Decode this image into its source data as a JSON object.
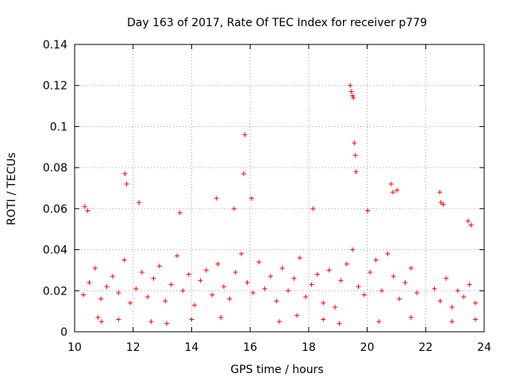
{
  "chart_data": {
    "type": "scatter",
    "title": "Day 163 of 2017, Rate Of TEC Index for receiver p779",
    "xlabel": "GPS time / hours",
    "ylabel": "ROTI / TECUs",
    "xlim": [
      10,
      24
    ],
    "ylim": [
      0,
      0.14
    ],
    "grid": true,
    "x_ticks": [
      10,
      12,
      14,
      16,
      18,
      20,
      22,
      24
    ],
    "x_tick_labels": [
      "10",
      "12",
      "14",
      "16",
      "18",
      "20",
      "22",
      "24"
    ],
    "y_ticks": [
      0,
      0.02,
      0.04,
      0.06,
      0.08,
      0.1,
      0.12,
      0.14
    ],
    "y_tick_labels": [
      "0",
      "0.02",
      "0.04",
      "0.06",
      "0.08",
      "0.1",
      "0.12",
      "0.14"
    ],
    "marker": "+",
    "series": [
      {
        "name": "ROTI",
        "color": "#ff0000",
        "x": [
          10.3,
          10.5,
          10.7,
          10.9,
          11.1,
          11.3,
          11.5,
          11.7,
          11.9,
          12.1,
          12.3,
          12.5,
          12.7,
          12.9,
          13.1,
          13.3,
          13.5,
          13.7,
          13.9,
          14.1,
          14.3,
          14.5,
          14.7,
          14.9,
          15.1,
          15.3,
          15.5,
          15.7,
          15.9,
          16.1,
          16.3,
          16.5,
          16.7,
          16.9,
          17.1,
          17.3,
          17.5,
          17.7,
          17.9,
          18.1,
          18.3,
          18.5,
          18.7,
          18.9,
          19.1,
          19.3,
          19.5,
          19.7,
          19.9,
          20.1,
          20.3,
          20.5,
          20.7,
          20.9,
          21.1,
          21.3,
          21.5,
          21.7,
          22.3,
          22.5,
          22.7,
          22.9,
          23.1,
          23.3,
          23.5,
          23.7,
          10.35,
          10.45,
          11.72,
          11.78,
          12.2,
          13.6,
          14.85,
          15.45,
          15.78,
          15.82,
          16.05,
          18.15,
          19.42,
          19.46,
          19.5,
          19.53,
          19.56,
          19.6,
          19.62,
          20.02,
          20.82,
          20.88,
          21.02,
          22.48,
          22.52,
          22.6,
          23.45,
          23.55,
          10.8,
          10.92,
          11.5,
          12.62,
          13.15,
          14.0,
          15.0,
          17.0,
          17.6,
          18.5,
          19.05,
          20.4,
          21.5,
          22.9,
          23.7
        ],
        "y": [
          0.018,
          0.024,
          0.031,
          0.016,
          0.022,
          0.027,
          0.019,
          0.035,
          0.014,
          0.021,
          0.029,
          0.017,
          0.026,
          0.032,
          0.015,
          0.023,
          0.037,
          0.02,
          0.028,
          0.013,
          0.025,
          0.03,
          0.018,
          0.033,
          0.022,
          0.016,
          0.029,
          0.038,
          0.024,
          0.019,
          0.034,
          0.021,
          0.027,
          0.015,
          0.031,
          0.02,
          0.026,
          0.036,
          0.017,
          0.023,
          0.028,
          0.014,
          0.03,
          0.012,
          0.025,
          0.033,
          0.04,
          0.022,
          0.018,
          0.029,
          0.035,
          0.02,
          0.038,
          0.027,
          0.016,
          0.024,
          0.031,
          0.019,
          0.021,
          0.015,
          0.026,
          0.012,
          0.02,
          0.017,
          0.023,
          0.014,
          0.061,
          0.059,
          0.077,
          0.072,
          0.063,
          0.058,
          0.065,
          0.06,
          0.077,
          0.096,
          0.065,
          0.06,
          0.12,
          0.117,
          0.115,
          0.114,
          0.092,
          0.086,
          0.078,
          0.059,
          0.072,
          0.068,
          0.069,
          0.068,
          0.063,
          0.062,
          0.054,
          0.052,
          0.007,
          0.005,
          0.006,
          0.005,
          0.004,
          0.006,
          0.007,
          0.005,
          0.008,
          0.006,
          0.004,
          0.005,
          0.007,
          0.005,
          0.006
        ]
      }
    ],
    "x_gaps": [
      [
        21.95,
        22.3
      ]
    ]
  }
}
